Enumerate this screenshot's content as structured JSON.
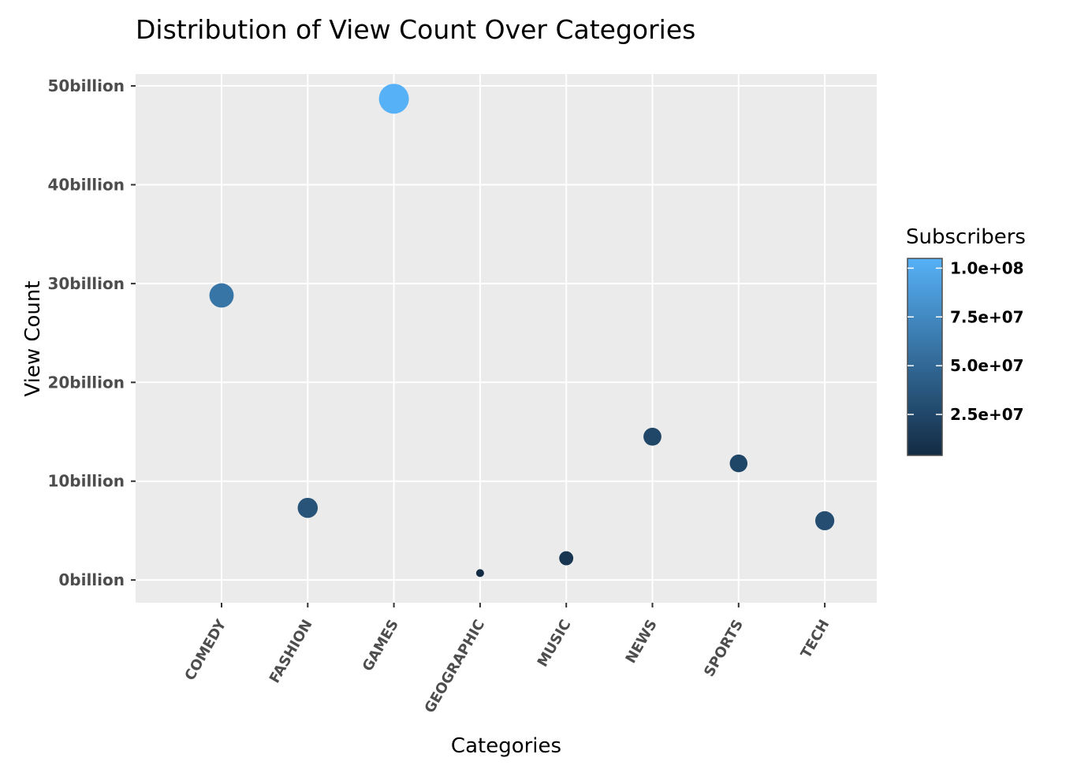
{
  "chart_data": {
    "type": "scatter",
    "title": "Distribution of View Count Over Categories",
    "xlabel": "Categories",
    "ylabel": "View Count",
    "categories": [
      "COMEDY",
      "FASHION",
      "GAMES",
      "GEOGRAPHIC",
      "MUSIC",
      "NEWS",
      "SPORTS",
      "TECH"
    ],
    "y_ticks": [
      0,
      10,
      20,
      30,
      40,
      50
    ],
    "y_tick_labels": [
      "0billion",
      "10billion",
      "20billion",
      "30billion",
      "40billion",
      "50billion"
    ],
    "ylim": [
      -2.3,
      51.2
    ],
    "points": [
      {
        "category": "COMEDY",
        "value": 28.8,
        "subscribers": 60000000
      },
      {
        "category": "FASHION",
        "value": 7.3,
        "subscribers": 35000000
      },
      {
        "category": "GAMES",
        "value": 48.7,
        "subscribers": 105000000
      },
      {
        "category": "GEOGRAPHIC",
        "value": 0.7,
        "subscribers": 4000000
      },
      {
        "category": "MUSIC",
        "value": 2.2,
        "subscribers": 12000000
      },
      {
        "category": "NEWS",
        "value": 14.5,
        "subscribers": 25000000
      },
      {
        "category": "SPORTS",
        "value": 11.8,
        "subscribers": 24000000
      },
      {
        "category": "TECH",
        "value": 6.0,
        "subscribers": 30000000
      }
    ],
    "legend": {
      "title": "Subscribers",
      "ticks": [
        25000000,
        50000000,
        75000000,
        100000000
      ],
      "tick_labels": [
        "2.5e+07",
        "5.0e+07",
        "7.5e+07",
        "1.0e+08"
      ],
      "range": [
        4000000,
        105000000
      ],
      "color_low": "#132b43",
      "color_high": "#56b1f7",
      "placement": "right"
    },
    "grid": true,
    "panel_background": "#ebebeb",
    "grid_color": "#ffffff"
  }
}
